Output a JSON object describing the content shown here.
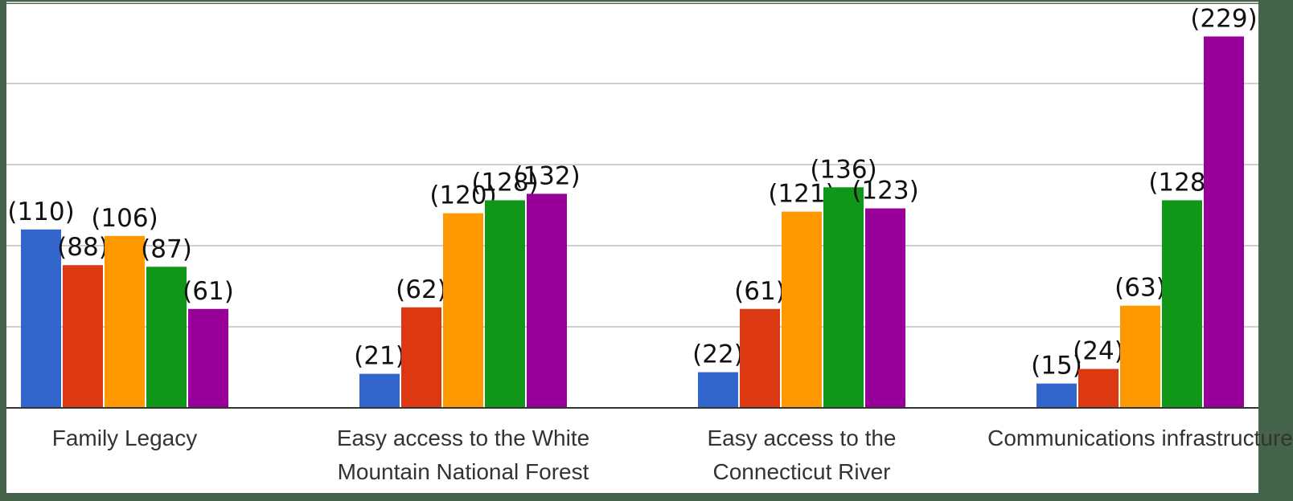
{
  "chart_data": {
    "type": "bar",
    "categories": [
      "Family Legacy",
      "Easy access to the White Mountain National Forest",
      "Easy access to the Connecticut River",
      "Communications infrastructure"
    ],
    "series": [
      {
        "color": "#3366cc",
        "values": [
          110,
          21,
          22,
          15
        ],
        "value_labels": [
          "(110)",
          "(21)",
          "(22)",
          "(15)"
        ]
      },
      {
        "color": "#dc3912",
        "values": [
          88,
          62,
          61,
          24
        ],
        "value_labels": [
          "(88)",
          "(62)",
          "(61)",
          "(24)"
        ]
      },
      {
        "color": "#ff9900",
        "values": [
          106,
          120,
          121,
          63
        ],
        "value_labels": [
          "(106)",
          "(120)",
          "(121)",
          "(63)"
        ]
      },
      {
        "color": "#109618",
        "values": [
          87,
          128,
          136,
          128
        ],
        "value_labels": [
          "(87)",
          "(128)",
          "(136)",
          "(128)"
        ]
      },
      {
        "color": "#990099",
        "values": [
          61,
          132,
          123,
          229
        ],
        "value_labels": [
          "(61)",
          "(132)",
          "(123)",
          "(229)"
        ]
      }
    ],
    "ylim": [
      0,
      250
    ],
    "yticks": [
      0,
      50,
      100,
      150,
      200,
      250
    ],
    "grid": true
  }
}
